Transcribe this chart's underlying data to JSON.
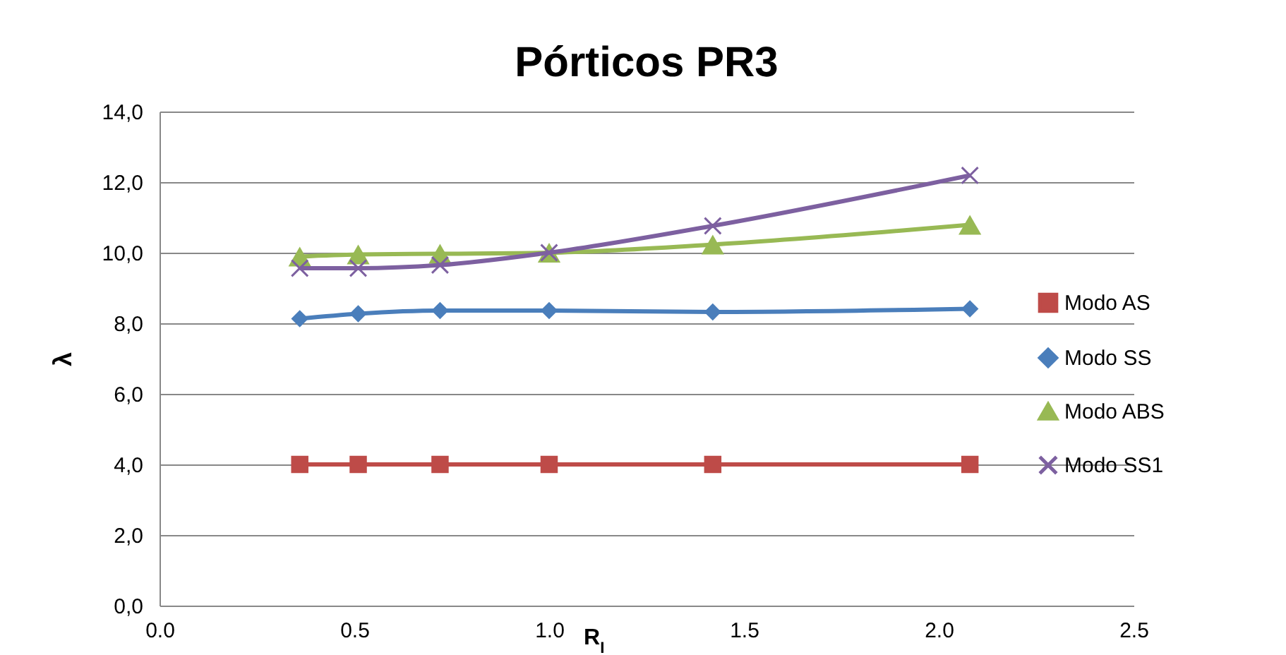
{
  "chart_data": {
    "type": "line",
    "title": "Pórticos PR3",
    "xlabel": "R$_{I}$",
    "ylabel": "λ",
    "x": [
      0.36,
      0.51,
      0.72,
      1.0,
      1.42,
      2.08
    ],
    "series": [
      {
        "name": "Modo AS",
        "color": "#be4b48",
        "marker": "square",
        "values": [
          4.0,
          4.0,
          4.0,
          4.0,
          4.0,
          4.0
        ]
      },
      {
        "name": "Modo SS",
        "color": "#4a7ebb",
        "marker": "diamond",
        "values": [
          8.13,
          8.27,
          8.36,
          8.36,
          8.32,
          8.41
        ]
      },
      {
        "name": "Modo ABS",
        "color": "#98b954",
        "marker": "triangle",
        "values": [
          9.89,
          9.95,
          9.97,
          10.0,
          10.23,
          10.79
        ]
      },
      {
        "name": "Modo SS1",
        "color": "#7d60a0",
        "marker": "cross",
        "values": [
          9.56,
          9.56,
          9.65,
          10.0,
          10.76,
          12.19
        ]
      }
    ],
    "xlim": [
      0,
      2.5
    ],
    "xticks": [
      {
        "value": 0,
        "label": "0.0"
      },
      {
        "value": 0.5,
        "label": "0.5"
      },
      {
        "value": 1,
        "label": "1.0"
      },
      {
        "value": 1.5,
        "label": "1.5"
      },
      {
        "value": 2,
        "label": "2.0"
      },
      {
        "value": 2.5,
        "label": "2.5"
      }
    ],
    "ylim": [
      0,
      14
    ],
    "yticks": [
      {
        "value": 0,
        "label": "0,0"
      },
      {
        "value": 2,
        "label": "2,0"
      },
      {
        "value": 4,
        "label": "4,0"
      },
      {
        "value": 6,
        "label": "6,0"
      },
      {
        "value": 8,
        "label": "8,0"
      },
      {
        "value": 10,
        "label": "10,0"
      },
      {
        "value": 12,
        "label": "12,0"
      },
      {
        "value": 14,
        "label": "14,0"
      }
    ],
    "grid": "y",
    "legend": "right"
  }
}
